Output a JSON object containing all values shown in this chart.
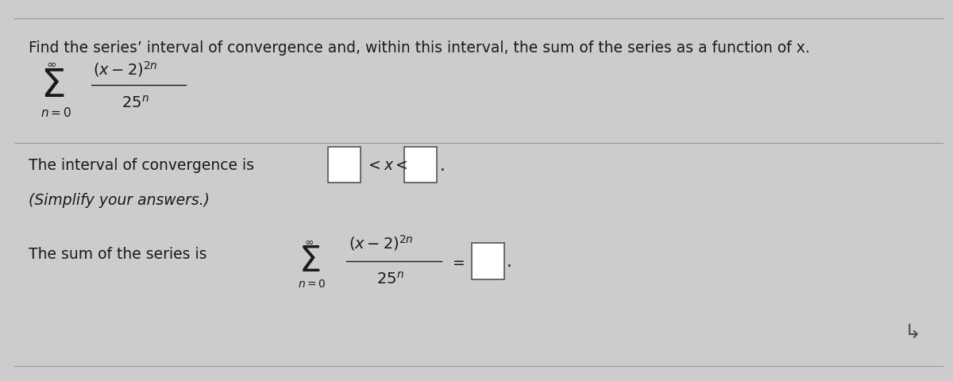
{
  "background_color": "#cccccc",
  "text_color": "#1a1a1a",
  "title_text": "Find the series’ interval of convergence and, within this interval, the sum of the series as a function of x.",
  "title_fontsize": 13.5,
  "body_fontsize": 13.5,
  "math_fontsize_large": 22,
  "math_fontsize_med": 14,
  "figsize": [
    12.0,
    4.81
  ],
  "dpi": 100,
  "line_color": "#999999",
  "box_edge_color": "#555555",
  "box_face_color": "#ffffff"
}
